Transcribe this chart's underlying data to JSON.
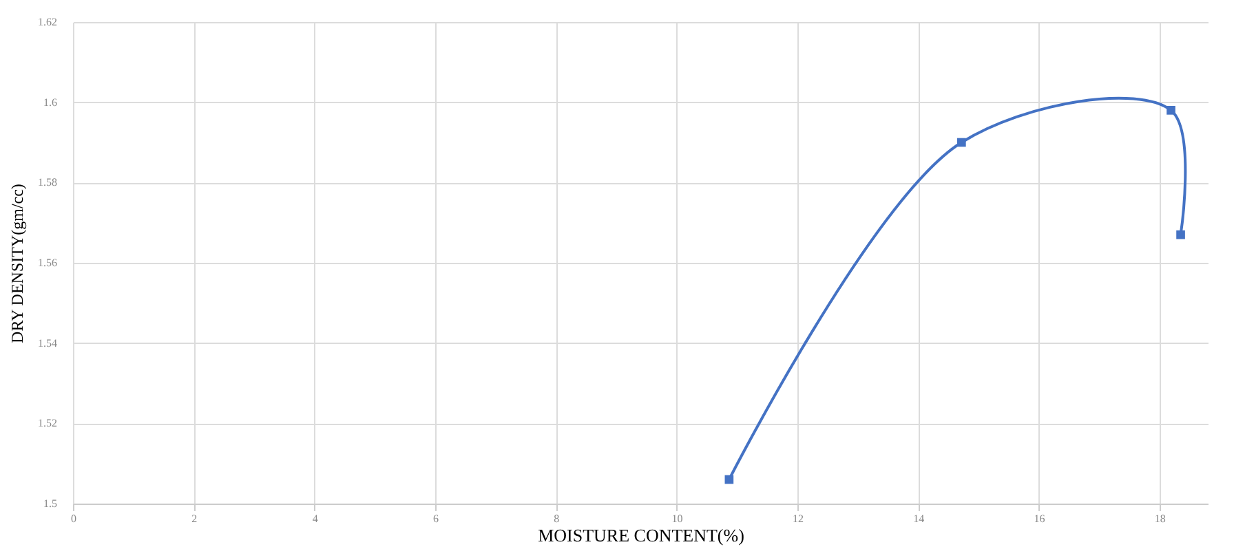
{
  "chart_data": {
    "type": "line",
    "xlabel": "MOISTURE CONTENT(%)",
    "ylabel": "DRY DENSITY(gm/cc)",
    "x": [
      10.87,
      14.72,
      18.19,
      18.35
    ],
    "series": [
      {
        "color": "#4472c4",
        "values": [
          1.506,
          1.59,
          1.598,
          1.567
        ]
      }
    ],
    "xlim": [
      0,
      18.8
    ],
    "xticks": [
      0,
      2,
      4,
      6,
      8,
      10,
      12,
      14,
      16,
      18
    ],
    "ylim": [
      1.5,
      1.62
    ],
    "yticks": [
      {
        "value": 1.5,
        "label": "1.5"
      },
      1.52,
      1.54,
      1.56,
      1.58,
      {
        "value": 1.6,
        "label": "1.6"
      },
      1.62
    ],
    "grid": true,
    "marker": "square",
    "line_style": "solid"
  }
}
